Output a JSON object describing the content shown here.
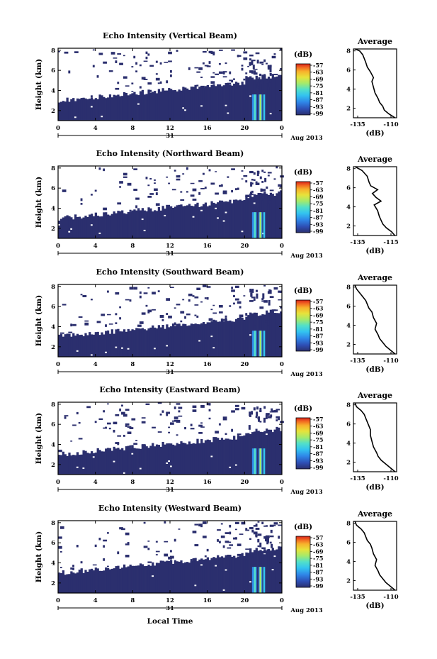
{
  "colors": {
    "echo_fill": "#2b2f6e",
    "background": "#ffffff",
    "colorbar": [
      "#2b2f6e",
      "#2e4fb5",
      "#2f86e8",
      "#33c3f0",
      "#52e0c9",
      "#a6ea6a",
      "#e8e23a",
      "#f7b22c",
      "#f26a22",
      "#d9231a"
    ]
  },
  "xaxis": {
    "date_label": "31",
    "month_label": "Aug 2013",
    "label": "Local Time"
  },
  "chart_data": [
    {
      "type": "heatmap",
      "title": "Echo Intensity (Vertical Beam)",
      "ylabel": "Height (km)",
      "xticks": [
        "0",
        "4",
        "8",
        "12",
        "16",
        "20",
        "0"
      ],
      "yticks": [
        "2",
        "4",
        "6",
        "8"
      ],
      "xlim": [
        0,
        24
      ],
      "ylim": [
        1,
        8.2
      ],
      "colorbar": {
        "unit": "(dB)",
        "ticks": [
          "-57",
          "-63",
          "-69",
          "-75",
          "-81",
          "-87",
          "-93",
          "-99"
        ]
      },
      "average": {
        "title": "Average",
        "xlabel": "(dB)",
        "xticks": [
          "-135",
          "-110"
        ],
        "yticks": [
          "2",
          "4",
          "6",
          "8"
        ],
        "xlim": [
          -135,
          -107
        ],
        "ylim": [
          1,
          8.2
        ],
        "x": [
          -108,
          -112,
          -115,
          -116,
          -118,
          -119,
          -121,
          -122,
          -123,
          -122,
          -124,
          -126,
          -127,
          -128,
          -129,
          -131,
          -134
        ],
        "y": [
          1.0,
          1.4,
          1.8,
          2.2,
          2.6,
          3.0,
          3.6,
          4.2,
          4.8,
          5.2,
          5.8,
          6.3,
          6.8,
          7.2,
          7.6,
          8.0,
          8.2
        ]
      }
    },
    {
      "type": "heatmap",
      "title": "Echo Intensity (Northward Beam)",
      "ylabel": "Height (km)",
      "xticks": [
        "0",
        "4",
        "8",
        "12",
        "16",
        "20",
        "0"
      ],
      "yticks": [
        "2",
        "4",
        "6",
        "8"
      ],
      "xlim": [
        0,
        24
      ],
      "ylim": [
        1,
        8.2
      ],
      "colorbar": {
        "unit": "(dB)",
        "ticks": [
          "-57",
          "-63",
          "-69",
          "-75",
          "-81",
          "-87",
          "-93",
          "-99"
        ]
      },
      "average": {
        "title": "Average",
        "xlabel": "(dB)",
        "xticks": [
          "-135",
          "-115"
        ],
        "yticks": [
          "2",
          "4",
          "6",
          "8"
        ],
        "xlim": [
          -135,
          -110
        ],
        "ylim": [
          1,
          8.2
        ],
        "x": [
          -111,
          -113,
          -116,
          -118,
          -119,
          -120,
          -121,
          -123,
          -119,
          -122,
          -124,
          -121,
          -125,
          -126,
          -127,
          -130,
          -134
        ],
        "y": [
          1.0,
          1.4,
          1.8,
          2.2,
          2.6,
          3.0,
          3.6,
          4.2,
          4.6,
          5.0,
          5.4,
          5.8,
          6.2,
          6.6,
          7.2,
          7.8,
          8.2
        ]
      }
    },
    {
      "type": "heatmap",
      "title": "Echo Intensity (Southward Beam)",
      "ylabel": "Height (km)",
      "xticks": [
        "0",
        "4",
        "8",
        "12",
        "16",
        "20",
        "0"
      ],
      "yticks": [
        "2",
        "4",
        "6",
        "8"
      ],
      "xlim": [
        0,
        24
      ],
      "ylim": [
        1,
        8.2
      ],
      "colorbar": {
        "unit": "(dB)",
        "ticks": [
          "-57",
          "-63",
          "-69",
          "-75",
          "-81",
          "-87",
          "-93",
          "-99"
        ]
      },
      "average": {
        "title": "Average",
        "xlabel": "(dB)",
        "xticks": [
          "-135",
          "-110"
        ],
        "yticks": [
          "2",
          "4",
          "6",
          "8"
        ],
        "xlim": [
          -135,
          -107
        ],
        "ylim": [
          1,
          8.2
        ],
        "x": [
          -108,
          -111,
          -114,
          -116,
          -118,
          -119,
          -121,
          -120,
          -122,
          -123,
          -125,
          -126,
          -127,
          -129,
          -131,
          -133,
          -134
        ],
        "y": [
          1.0,
          1.4,
          1.8,
          2.2,
          2.6,
          3.0,
          3.6,
          4.2,
          4.8,
          5.4,
          5.8,
          6.2,
          6.6,
          7.0,
          7.4,
          7.8,
          8.2
        ]
      }
    },
    {
      "type": "heatmap",
      "title": "Echo Intensity (Eastward Beam)",
      "ylabel": "Height (km)",
      "xticks": [
        "0",
        "4",
        "8",
        "12",
        "16",
        "20",
        "0"
      ],
      "yticks": [
        "2",
        "4",
        "6",
        "8"
      ],
      "xlim": [
        0,
        24
      ],
      "ylim": [
        1,
        8.2
      ],
      "colorbar": {
        "unit": "(dB)",
        "ticks": [
          "-57",
          "-63",
          "-69",
          "-75",
          "-81",
          "-87",
          "-93",
          "-99"
        ]
      },
      "average": {
        "title": "Average",
        "xlabel": "(dB)",
        "xticks": [
          "-135",
          "-110"
        ],
        "yticks": [
          "2",
          "4",
          "6",
          "8"
        ],
        "xlim": [
          -135,
          -107
        ],
        "ylim": [
          1,
          8.2
        ],
        "x": [
          -108,
          -111,
          -114,
          -117,
          -119,
          -120,
          -122,
          -123,
          -124,
          -124,
          -125,
          -126,
          -127,
          -128,
          -130,
          -133,
          -134
        ],
        "y": [
          1.0,
          1.4,
          1.8,
          2.2,
          2.6,
          3.0,
          3.6,
          4.2,
          4.8,
          5.4,
          5.8,
          6.2,
          6.6,
          7.0,
          7.4,
          7.8,
          8.2
        ]
      }
    },
    {
      "type": "heatmap",
      "title": "Echo Intensity (Westward Beam)",
      "ylabel": "Height (km)",
      "xticks": [
        "0",
        "4",
        "8",
        "12",
        "16",
        "20",
        "0"
      ],
      "yticks": [
        "2",
        "4",
        "6",
        "8"
      ],
      "xlim": [
        0,
        24
      ],
      "ylim": [
        1,
        8.2
      ],
      "colorbar": {
        "unit": "(dB)",
        "ticks": [
          "-57",
          "-63",
          "-69",
          "-75",
          "-81",
          "-87",
          "-93",
          "-99"
        ]
      },
      "average": {
        "title": "Average",
        "xlabel": "(dB)",
        "xticks": [
          "-135",
          "-110"
        ],
        "yticks": [
          "2",
          "4",
          "6",
          "8"
        ],
        "xlim": [
          -135,
          -107
        ],
        "ylim": [
          1,
          8.2
        ],
        "x": [
          -108,
          -111,
          -114,
          -116,
          -118,
          -119,
          -121,
          -120,
          -122,
          -123,
          -124,
          -126,
          -127,
          -128,
          -130,
          -133,
          -134
        ],
        "y": [
          1.0,
          1.4,
          1.8,
          2.2,
          2.6,
          3.0,
          3.6,
          4.2,
          4.8,
          5.4,
          5.8,
          6.2,
          6.6,
          7.0,
          7.4,
          7.8,
          8.2
        ]
      }
    }
  ]
}
